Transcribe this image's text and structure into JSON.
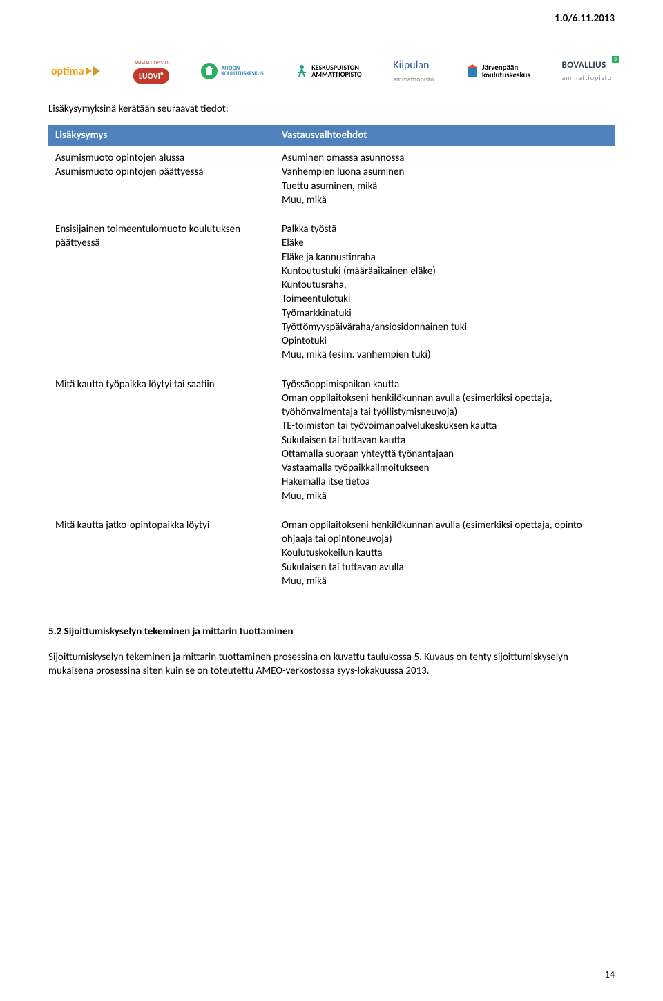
{
  "version": "1.0/6.11.2013",
  "logos": {
    "optima": "optima",
    "luovi_top": "AMMATTIOPISTO",
    "luovi": "LUOVI",
    "aitoon_top": "AITOON",
    "aitoon_bottom": "KOULUTUSKESKUS",
    "keskus_top": "KESKUSPUISTON",
    "keskus_bottom": "AMMATTIOPISTO",
    "kiipulan_top": "Kiipulan",
    "kiipulan_bottom": "ammattiopisto",
    "jarven_top": "Järvenpään",
    "jarven_bottom": "koulutuskeskus",
    "bovallius_top": "BOVALLIUS",
    "bovallius_bottom": "ammattiopisto"
  },
  "intro": "Lisäkysymyksinä kerätään seuraavat tiedot:",
  "table": {
    "header_left": "Lisäkysymys",
    "header_right": "Vastausvaihtoehdot",
    "rows": [
      {
        "left": "Asumismuoto opintojen alussa\nAsumismuoto opintojen päättyessä",
        "right": "Asuminen omassa asunnossa\nVanhempien luona asuminen\nTuettu asuminen, mikä\nMuu, mikä"
      },
      {
        "left": "Ensisijainen toimeentulomuoto koulutuksen päättyessä",
        "right": "Palkka työstä\nEläke\nEläke ja kannustinraha\nKuntoutustuki (määräaikainen eläke)\nKuntoutusraha,\nToimeentulotuki\nTyömarkkinatuki\nTyöttömyyspäiväraha/ansiosidonnainen tuki\nOpintotuki\nMuu, mikä (esim. vanhempien tuki)"
      },
      {
        "left": "Mitä kautta työpaikka löytyi tai saatiin",
        "right": "Työssäoppimispaikan kautta\nOman oppilaitokseni henkilökunnan avulla (esimerkiksi opettaja, työhönvalmentaja tai työllistymisneuvoja)\nTE-toimiston tai työvoimanpalvelukeskuksen kautta\nSukulaisen tai tuttavan kautta\nOttamalla suoraan yhteyttä työnantajaan\nVastaamalla työpaikkailmoitukseen\nHakemalla itse tietoa\nMuu, mikä"
      },
      {
        "left": "Mitä kautta jatko-opintopaikka löytyi",
        "right": "Oman oppilaitokseni henkilökunnan avulla (esimerkiksi opettaja, opinto-ohjaaja tai opintoneuvoja)\nKoulutuskokeilun kautta\nSukulaisen tai tuttavan avulla\nMuu, mikä"
      }
    ]
  },
  "section_heading": "5.2 Sijoittumiskyselyn tekeminen ja mittarin tuottaminen",
  "body_text": "Sijoittumiskyselyn tekeminen ja mittarin tuottaminen prosessina on kuvattu taulukossa 5. Kuvaus on tehty sijoittumiskyselyn mukaisena prosessina siten kuin se on toteutettu AMEO-verkostossa syys-lokakuussa 2013.",
  "page_number": "14",
  "colors": {
    "header_bg": "#4f81bd",
    "header_fg": "#ffffff",
    "optima_orange": "#f39c12",
    "luovi_red": "#c0392b",
    "aitoon_green": "#27ae60",
    "keskus_green": "#16a085",
    "kiipulan_blue": "#2c3e50",
    "jarven_blue": "#2980b9",
    "bovallius_dark": "#2c3e50",
    "bovallius_green": "#27ae60"
  }
}
